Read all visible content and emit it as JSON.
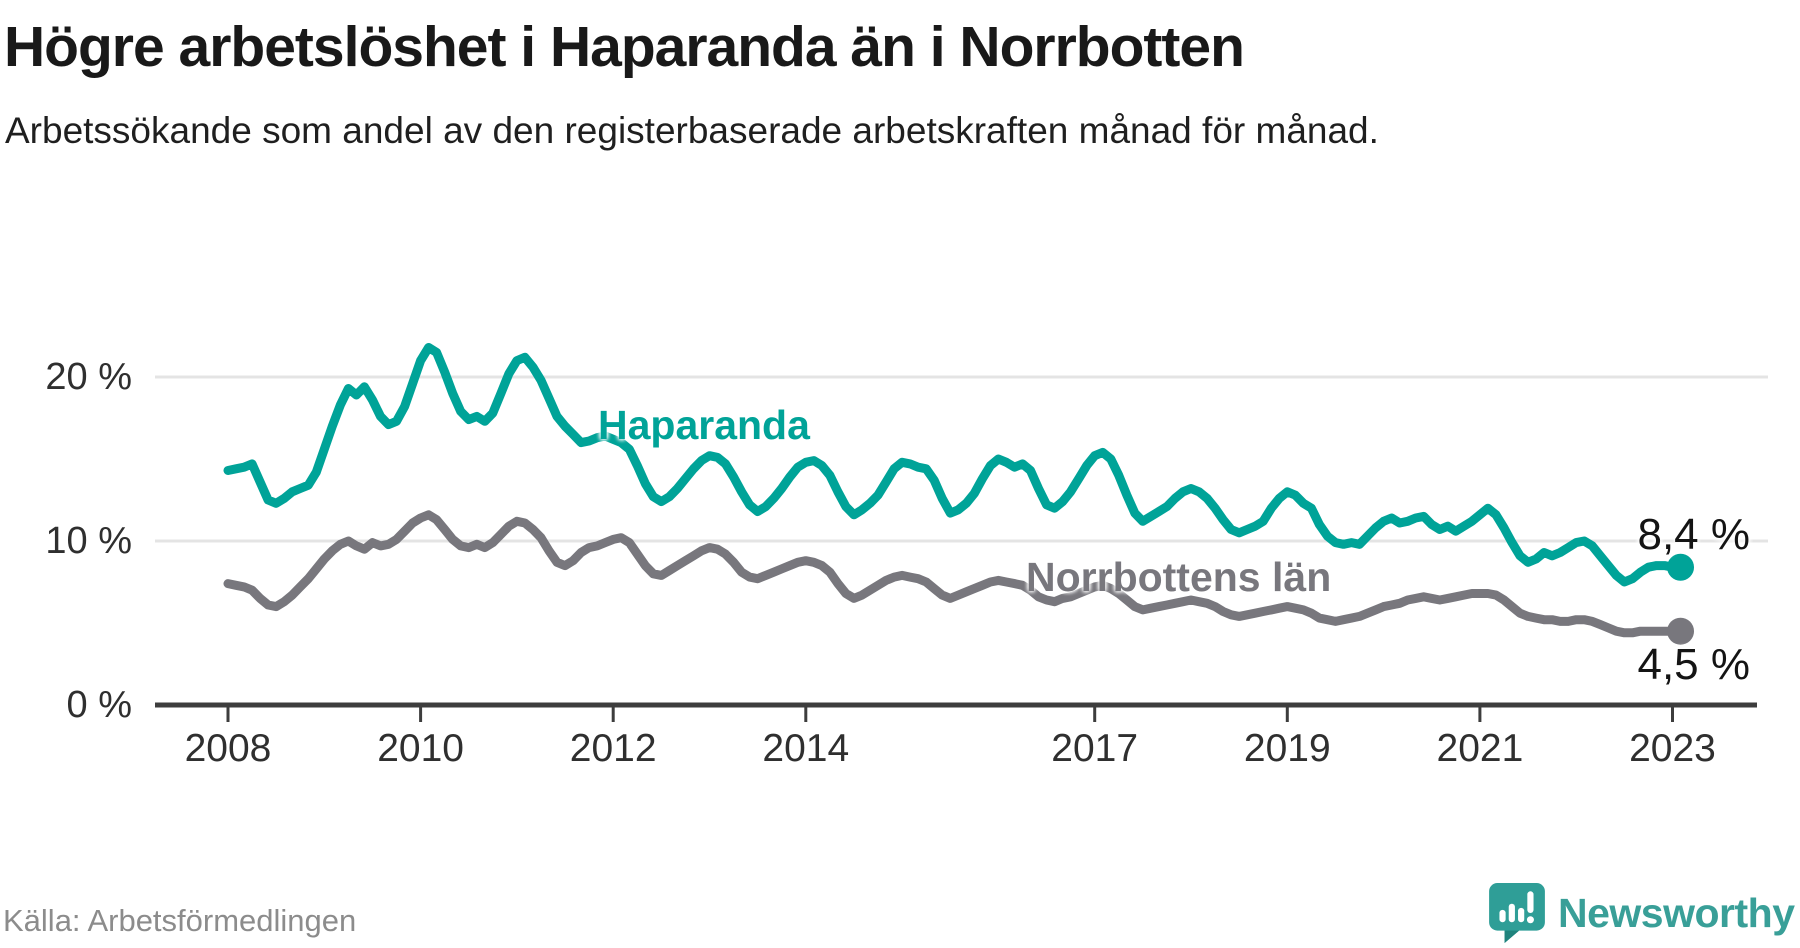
{
  "header": {
    "title": "Högre arbetslöshet i Haparanda än i Norrbotten",
    "subtitle": "Arbetssökande som andel av den registerbaserade arbetskraften månad för månad."
  },
  "footer": {
    "source": "Källa: Arbetsförmedlingen",
    "brand": "Newsworthy"
  },
  "colors": {
    "haparanda": "#00a398",
    "norrbotten": "#78777d",
    "axis": "#3d3d3d",
    "grid": "#e4e4e4",
    "brand_teal": "#399f98"
  },
  "chart_data": {
    "type": "line",
    "title": "Högre arbetslöshet i Haparanda än i Norrbotten",
    "subtitle": "Arbetssökande som andel av den registerbaserade arbetskraften månad för månad.",
    "unit": "%",
    "frequency": "monthly",
    "start": {
      "year": 2008,
      "month": 1
    },
    "end": {
      "year": 2023,
      "month": 2
    },
    "grid": "horizontal",
    "ylim": [
      0,
      23.5
    ],
    "y_ticks": [
      {
        "value": 0,
        "label": "0 %"
      },
      {
        "value": 10,
        "label": "10 %"
      },
      {
        "value": 20,
        "label": "20 %"
      }
    ],
    "x_ticks": [
      {
        "value": 2008,
        "label": "2008"
      },
      {
        "value": 2010,
        "label": "2010"
      },
      {
        "value": 2012,
        "label": "2012"
      },
      {
        "value": 2014,
        "label": "2014"
      },
      {
        "value": 2017,
        "label": "2017"
      },
      {
        "value": 2019,
        "label": "2019"
      },
      {
        "value": 2021,
        "label": "2021"
      },
      {
        "value": 2023,
        "label": "2023"
      }
    ],
    "series": [
      {
        "name": "Haparanda",
        "color": "#00a398",
        "end_label": "8,4 %",
        "end_value": 8.4,
        "values": [
          14.3,
          14.4,
          14.5,
          14.7,
          13.6,
          12.5,
          12.3,
          12.6,
          13.0,
          13.2,
          13.4,
          14.2,
          15.6,
          17.0,
          18.3,
          19.3,
          18.9,
          19.4,
          18.6,
          17.6,
          17.1,
          17.3,
          18.2,
          19.6,
          21.0,
          21.8,
          21.5,
          20.3,
          19.0,
          17.9,
          17.4,
          17.6,
          17.3,
          17.8,
          19.0,
          20.2,
          21.0,
          21.2,
          20.6,
          19.8,
          18.7,
          17.6,
          17.0,
          16.5,
          16.0,
          16.1,
          16.3,
          16.4,
          16.2,
          16.0,
          15.6,
          14.6,
          13.5,
          12.7,
          12.4,
          12.7,
          13.2,
          13.8,
          14.4,
          14.9,
          15.2,
          15.1,
          14.7,
          13.9,
          13.0,
          12.2,
          11.8,
          12.1,
          12.6,
          13.2,
          13.9,
          14.5,
          14.8,
          14.9,
          14.6,
          14.0,
          13.0,
          12.1,
          11.6,
          11.9,
          12.3,
          12.8,
          13.6,
          14.4,
          14.8,
          14.7,
          14.5,
          14.4,
          13.7,
          12.6,
          11.7,
          11.9,
          12.3,
          12.9,
          13.8,
          14.6,
          15.0,
          14.8,
          14.5,
          14.7,
          14.3,
          13.2,
          12.2,
          12.0,
          12.4,
          13.0,
          13.8,
          14.6,
          15.2,
          15.4,
          15.0,
          14.0,
          12.8,
          11.7,
          11.2,
          11.5,
          11.8,
          12.1,
          12.6,
          13.0,
          13.2,
          13.0,
          12.6,
          12.0,
          11.3,
          10.7,
          10.5,
          10.7,
          10.9,
          11.2,
          12.0,
          12.6,
          13.0,
          12.8,
          12.3,
          12.0,
          11.0,
          10.3,
          9.9,
          9.8,
          9.9,
          9.8,
          10.3,
          10.8,
          11.2,
          11.4,
          11.1,
          11.2,
          11.4,
          11.5,
          11.0,
          10.7,
          10.9,
          10.6,
          10.9,
          11.2,
          11.6,
          12.0,
          11.6,
          10.8,
          9.9,
          9.1,
          8.7,
          8.9,
          9.3,
          9.1,
          9.3,
          9.6,
          9.9,
          10.0,
          9.7,
          9.1,
          8.5,
          7.9,
          7.5,
          7.7,
          8.1,
          8.4,
          8.5,
          8.5,
          8.4,
          8.4
        ]
      },
      {
        "name": "Norrbottens län",
        "color": "#78777d",
        "end_label": "4,5 %",
        "end_value": 4.5,
        "values": [
          7.4,
          7.3,
          7.2,
          7.0,
          6.5,
          6.1,
          6.0,
          6.3,
          6.7,
          7.2,
          7.7,
          8.3,
          8.9,
          9.4,
          9.8,
          10.0,
          9.7,
          9.5,
          9.9,
          9.7,
          9.8,
          10.1,
          10.6,
          11.1,
          11.4,
          11.6,
          11.3,
          10.7,
          10.1,
          9.7,
          9.6,
          9.8,
          9.6,
          9.9,
          10.4,
          10.9,
          11.2,
          11.1,
          10.7,
          10.2,
          9.4,
          8.7,
          8.5,
          8.8,
          9.3,
          9.6,
          9.7,
          9.9,
          10.1,
          10.2,
          9.9,
          9.2,
          8.5,
          8.0,
          7.9,
          8.2,
          8.5,
          8.8,
          9.1,
          9.4,
          9.6,
          9.5,
          9.2,
          8.7,
          8.1,
          7.8,
          7.7,
          7.9,
          8.1,
          8.3,
          8.5,
          8.7,
          8.8,
          8.7,
          8.5,
          8.1,
          7.4,
          6.8,
          6.5,
          6.7,
          7.0,
          7.3,
          7.6,
          7.8,
          7.9,
          7.8,
          7.7,
          7.5,
          7.1,
          6.7,
          6.5,
          6.7,
          6.9,
          7.1,
          7.3,
          7.5,
          7.6,
          7.5,
          7.4,
          7.3,
          7.0,
          6.6,
          6.4,
          6.3,
          6.5,
          6.6,
          6.8,
          7.0,
          7.2,
          7.3,
          7.1,
          6.8,
          6.4,
          6.0,
          5.8,
          5.9,
          6.0,
          6.1,
          6.2,
          6.3,
          6.4,
          6.3,
          6.2,
          6.0,
          5.7,
          5.5,
          5.4,
          5.5,
          5.6,
          5.7,
          5.8,
          5.9,
          6.0,
          5.9,
          5.8,
          5.6,
          5.3,
          5.2,
          5.1,
          5.2,
          5.3,
          5.4,
          5.6,
          5.8,
          6.0,
          6.1,
          6.2,
          6.4,
          6.5,
          6.6,
          6.5,
          6.4,
          6.5,
          6.6,
          6.7,
          6.8,
          6.8,
          6.8,
          6.7,
          6.4,
          6.0,
          5.6,
          5.4,
          5.3,
          5.2,
          5.2,
          5.1,
          5.1,
          5.2,
          5.2,
          5.1,
          4.9,
          4.7,
          4.5,
          4.4,
          4.4,
          4.5,
          4.5,
          4.5,
          4.5,
          4.5,
          4.5
        ]
      }
    ]
  }
}
